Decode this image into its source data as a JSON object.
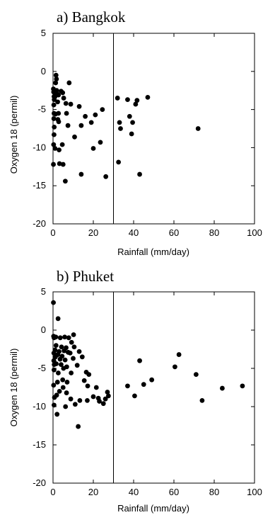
{
  "chart_data": [
    {
      "type": "scatter",
      "title": "a) Bangkok",
      "xlabel": "Rainfall (mm/day)",
      "ylabel": "Oxygen 18 (permil)",
      "xlim": [
        0,
        100
      ],
      "ylim": [
        -20,
        5
      ],
      "xticks": [
        0,
        20,
        40,
        60,
        80,
        100
      ],
      "yticks": [
        5,
        0,
        -5,
        -10,
        -15,
        -20
      ],
      "reference_line_x": 30,
      "grid": false,
      "points": [
        [
          0.2,
          -12.2
        ],
        [
          0.3,
          -9.6
        ],
        [
          0.5,
          -8.3
        ],
        [
          0.6,
          -7.3
        ],
        [
          0.4,
          -6.2
        ],
        [
          0.5,
          -5.5
        ],
        [
          0.4,
          -4.4
        ],
        [
          0.6,
          -3.7
        ],
        [
          0.5,
          -3.3
        ],
        [
          0.3,
          -2.7
        ],
        [
          0.2,
          -2.3
        ],
        [
          1.0,
          -10.1
        ],
        [
          1.2,
          -5.6
        ],
        [
          1.0,
          -3.3
        ],
        [
          1.1,
          -2.7
        ],
        [
          1.3,
          -1.5
        ],
        [
          1.5,
          -0.5
        ],
        [
          1.7,
          -1.0
        ],
        [
          1.8,
          -2.5
        ],
        [
          2.2,
          -3.0
        ],
        [
          2.3,
          -4.0
        ],
        [
          2.4,
          -6.3
        ],
        [
          2.7,
          -3.1
        ],
        [
          2.7,
          -5.5
        ],
        [
          2.8,
          -6.6
        ],
        [
          3.0,
          -10.3
        ],
        [
          3.2,
          -12.1
        ],
        [
          4.0,
          -2.6
        ],
        [
          4.8,
          -2.8
        ],
        [
          4.6,
          -9.6
        ],
        [
          5.0,
          -12.2
        ],
        [
          5.3,
          -3.5
        ],
        [
          6.4,
          -4.2
        ],
        [
          6.1,
          -14.4
        ],
        [
          6.7,
          -5.5
        ],
        [
          7.4,
          -7.1
        ],
        [
          8.0,
          -1.5
        ],
        [
          8.8,
          -4.3
        ],
        [
          10.7,
          -8.6
        ],
        [
          13.0,
          -4.6
        ],
        [
          14.0,
          -7.1
        ],
        [
          14.0,
          -13.5
        ],
        [
          16.0,
          -5.9
        ],
        [
          19.0,
          -6.7
        ],
        [
          20.0,
          -10.1
        ],
        [
          21.0,
          -5.7
        ],
        [
          23.5,
          -9.3
        ],
        [
          24.5,
          -5.0
        ],
        [
          26.2,
          -13.8
        ],
        [
          32.0,
          -3.5
        ],
        [
          32.5,
          -11.9
        ],
        [
          33.0,
          -6.7
        ],
        [
          33.5,
          -7.5
        ],
        [
          37.0,
          -3.7
        ],
        [
          38.0,
          -5.9
        ],
        [
          39.0,
          -8.2
        ],
        [
          39.5,
          -6.7
        ],
        [
          41.0,
          -4.3
        ],
        [
          41.7,
          -3.8
        ],
        [
          43.0,
          -13.5
        ],
        [
          47.0,
          -3.4
        ],
        [
          72.0,
          -7.5
        ]
      ]
    },
    {
      "type": "scatter",
      "title": "b) Phuket",
      "xlabel": "Rainfall (mm/day)",
      "ylabel": "Oxygen 18 (permil)",
      "xlim": [
        0,
        100
      ],
      "ylim": [
        -20,
        5
      ],
      "xticks": [
        0,
        20,
        40,
        60,
        80,
        100
      ],
      "yticks": [
        5,
        0,
        -5,
        -10,
        -15,
        -20
      ],
      "reference_line_x": 30,
      "grid": false,
      "points": [
        [
          0.2,
          3.6
        ],
        [
          2.5,
          1.5
        ],
        [
          0.3,
          -0.8
        ],
        [
          0.5,
          -1.0
        ],
        [
          0.4,
          -3.0
        ],
        [
          0.6,
          -4.5
        ],
        [
          0.5,
          -5.2
        ],
        [
          0.3,
          -7.2
        ],
        [
          0.7,
          -8.8
        ],
        [
          0.5,
          -9.8
        ],
        [
          0.4,
          -4.0
        ],
        [
          1.0,
          -2.6
        ],
        [
          1.2,
          -3.5
        ],
        [
          1.4,
          -0.9
        ],
        [
          1.5,
          -2.0
        ],
        [
          1.6,
          -4.4
        ],
        [
          1.8,
          -8.5
        ],
        [
          2.0,
          -11.0
        ],
        [
          2.2,
          -6.8
        ],
        [
          2.4,
          -3.2
        ],
        [
          2.6,
          -5.6
        ],
        [
          3.0,
          -2.8
        ],
        [
          3.2,
          -8.0
        ],
        [
          3.5,
          -3.8
        ],
        [
          3.6,
          -1.0
        ],
        [
          4.0,
          -4.5
        ],
        [
          4.2,
          -2.2
        ],
        [
          4.5,
          -3.4
        ],
        [
          4.8,
          -6.5
        ],
        [
          5.0,
          -7.5
        ],
        [
          5.2,
          -5.0
        ],
        [
          5.5,
          -2.7
        ],
        [
          5.8,
          -0.9
        ],
        [
          6.0,
          -3.9
        ],
        [
          6.2,
          -10.0
        ],
        [
          6.5,
          -2.3
        ],
        [
          6.7,
          -8.2
        ],
        [
          6.8,
          -4.8
        ],
        [
          7.0,
          -6.8
        ],
        [
          7.5,
          -2.9
        ],
        [
          7.8,
          -1.0
        ],
        [
          8.5,
          -3.0
        ],
        [
          8.8,
          -9.0
        ],
        [
          9.0,
          -5.6
        ],
        [
          9.2,
          -1.6
        ],
        [
          10.0,
          -3.7
        ],
        [
          10.2,
          -0.6
        ],
        [
          10.5,
          -2.2
        ],
        [
          11.0,
          -9.7
        ],
        [
          12.0,
          -4.6
        ],
        [
          12.5,
          -12.6
        ],
        [
          13.0,
          -2.8
        ],
        [
          13.3,
          -9.2
        ],
        [
          14.5,
          -3.5
        ],
        [
          15.5,
          -6.6
        ],
        [
          16.5,
          -5.5
        ],
        [
          17.0,
          -9.2
        ],
        [
          17.2,
          -7.3
        ],
        [
          17.8,
          -5.8
        ],
        [
          20.0,
          -8.7
        ],
        [
          21.5,
          -7.5
        ],
        [
          22.5,
          -8.9
        ],
        [
          23.0,
          -9.3
        ],
        [
          25.0,
          -9.6
        ],
        [
          26.0,
          -9.0
        ],
        [
          27.0,
          -8.1
        ],
        [
          27.5,
          -8.6
        ],
        [
          37.0,
          -7.3
        ],
        [
          40.5,
          -8.6
        ],
        [
          43.0,
          -4.0
        ],
        [
          45.0,
          -7.1
        ],
        [
          49.0,
          -6.5
        ],
        [
          60.5,
          -4.8
        ],
        [
          62.5,
          -3.2
        ],
        [
          71.0,
          -5.8
        ],
        [
          74.0,
          -9.2
        ],
        [
          84.0,
          -7.6
        ],
        [
          94.0,
          -7.3
        ]
      ]
    }
  ]
}
